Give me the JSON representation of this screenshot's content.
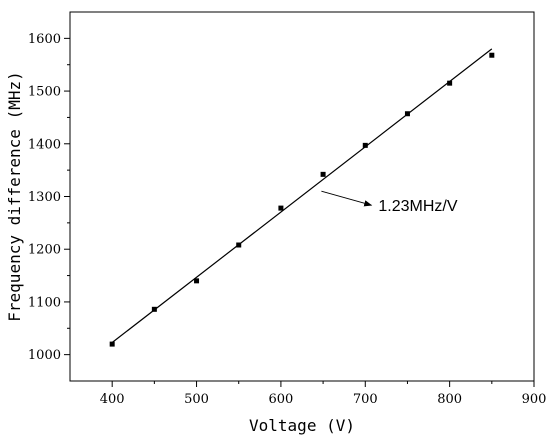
{
  "chart_data": {
    "type": "scatter",
    "title": "",
    "xlabel": "Voltage (V)",
    "ylabel": "Frequency difference (MHz)",
    "xlim": [
      350,
      900
    ],
    "ylim": [
      950,
      1650
    ],
    "x_ticks": [
      400,
      500,
      600,
      700,
      800,
      900
    ],
    "x_minor_ticks": [
      450,
      550,
      650,
      750,
      850
    ],
    "y_ticks": [
      1000,
      1100,
      1200,
      1300,
      1400,
      1500,
      1600
    ],
    "y_minor_ticks": [
      1050,
      1150,
      1250,
      1350,
      1450,
      1550
    ],
    "grid": false,
    "series": [
      {
        "x": [
          400,
          450,
          500,
          550,
          600,
          650,
          700,
          750,
          800,
          850
        ],
        "y": [
          1020,
          1086,
          1140,
          1208,
          1278,
          1342,
          1397,
          1457,
          1515,
          1568
        ]
      }
    ],
    "fit_line": {
      "x": [
        400,
        850
      ],
      "y": [
        1023,
        1580
      ]
    },
    "annotation": {
      "text": "1.23MHz/V",
      "arrow_to": [
        648,
        1310
      ]
    },
    "colors": {
      "marker": "#000000",
      "line": "#000000",
      "axis": "#000000"
    }
  }
}
